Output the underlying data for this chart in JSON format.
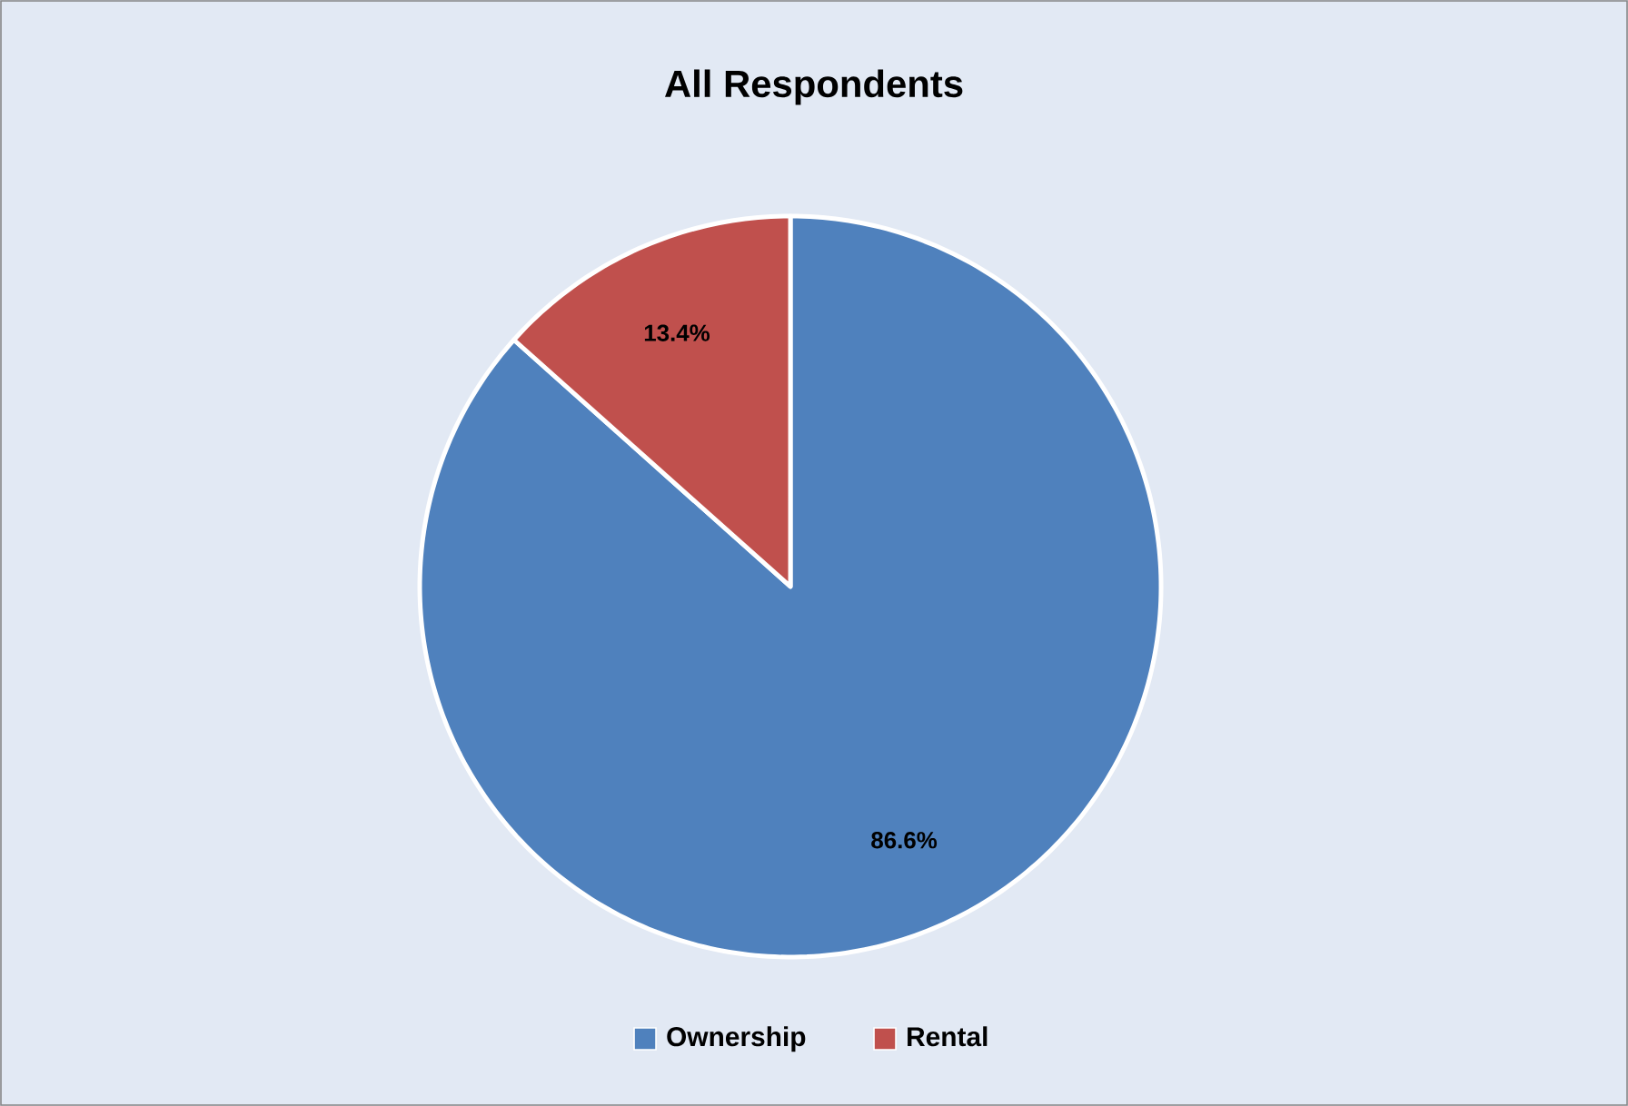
{
  "chart_data": {
    "type": "pie",
    "title": "All Respondents",
    "categories": [
      "Ownership",
      "Rental"
    ],
    "values": [
      86.6,
      13.4
    ],
    "colors": [
      "#4f81bd",
      "#c0504d"
    ],
    "value_labels": [
      "86.6%",
      "13.4%"
    ],
    "legend": "bottom"
  }
}
